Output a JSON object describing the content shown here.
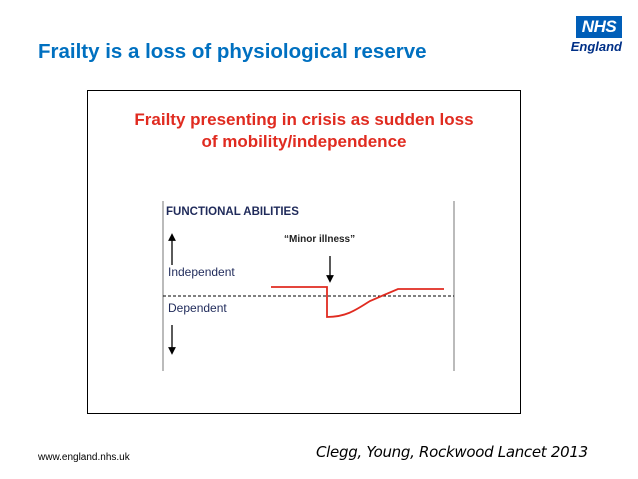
{
  "slide": {
    "title": "Frailty is a loss of physiological reserve",
    "footer_url": "www.england.nhs.uk",
    "citation": "Clegg, Young, Rockwood Lancet 2013"
  },
  "logo": {
    "box_text": "NHS",
    "sub_text": "England",
    "color": "#005eb8"
  },
  "figure": {
    "title_line1": "Frailty presenting in crisis as sudden loss",
    "title_line2": "of mobility/independence",
    "title_color": "#e02b20",
    "panel_label": "FUNCTIONAL ABILITIES",
    "event_label": "“Minor illness”",
    "independent_label": "Independent",
    "dependent_label": "Dependent",
    "line_color": "#e02b20",
    "icons": [
      "arrow-up-icon",
      "arrow-down-icon",
      "event-arrow-icon"
    ]
  }
}
